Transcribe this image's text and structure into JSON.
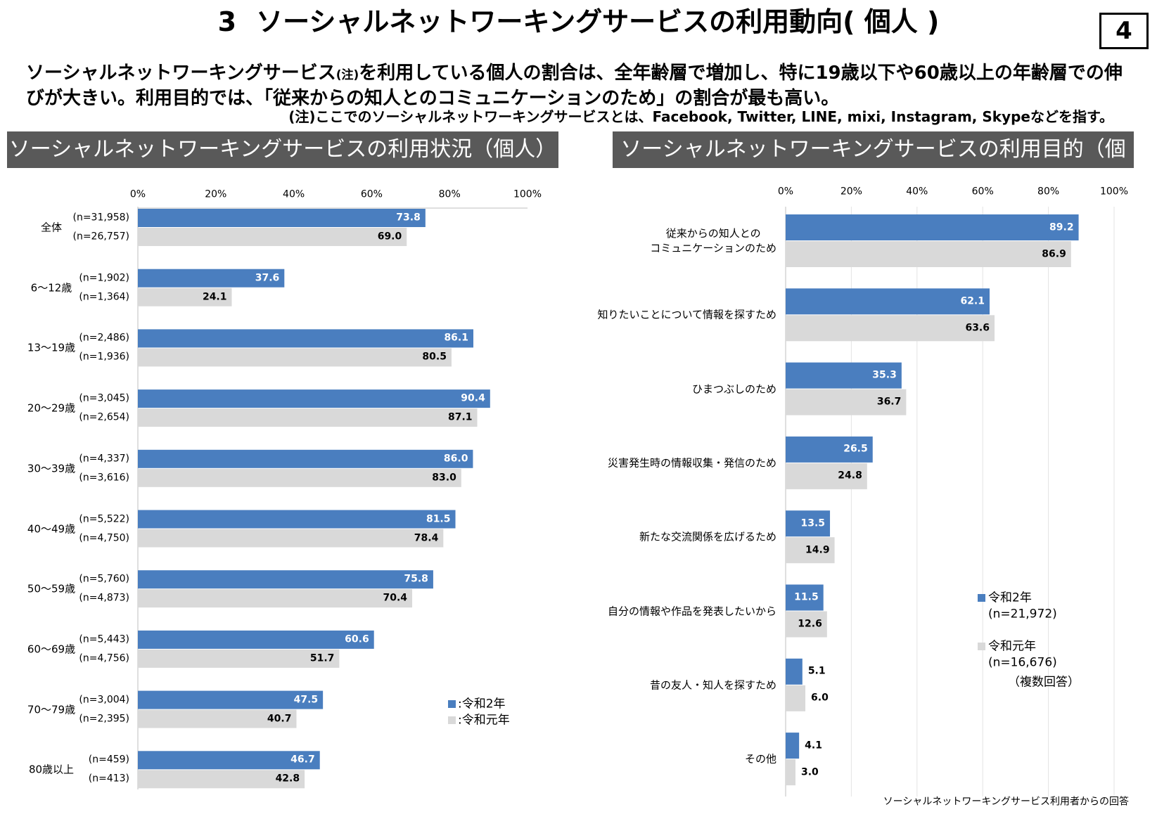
{
  "header": {
    "number": "3",
    "title": "ソーシャルネットワーキングサービスの利用動向( 個人 )",
    "page": "4",
    "summary": [
      "ソーシャルネットワーキングサービス",
      "(注)",
      "を利用している個人の割合は、全年齢層で増加し、特に19歳以下や60歳以上の年齢層での伸びが大きい。利用目的では、「従来からの知人とのコミュニケーションのため」の割合が最も高い。"
    ],
    "note": "(注)ここでのソーシャルネットワーキングサービスとは、Facebook, Twitter, LINE, mixi, Instagram, Skypeなどを指す。"
  },
  "chart_data": [
    {
      "type": "bar",
      "orientation": "horizontal",
      "title": "ソーシャルネットワーキングサービスの利用状況（個人）",
      "categories": [
        "全体",
        "6～12歳",
        "13～19歳",
        "20～29歳",
        "30～39歳",
        "40～49歳",
        "50～59歳",
        "60～69歳",
        "70～79歳",
        "80歳以上"
      ],
      "series": [
        {
          "name": ":令和2年",
          "color": "#4a7ebf",
          "values": [
            73.8,
            37.6,
            86.1,
            90.4,
            86.0,
            81.5,
            75.8,
            60.6,
            47.5,
            46.7
          ],
          "value_labels": [
            "73.8",
            "37.6",
            "86.1",
            "90.4",
            "86.0",
            "81.5",
            "75.8",
            "60.6",
            "47.5",
            "46.7"
          ],
          "n_labels": [
            "(n=31,958)",
            "(n=1,902)",
            "(n=2,486)",
            "(n=3,045)",
            "(n=4,337)",
            "(n=5,522)",
            "(n=5,760)",
            "(n=5,443)",
            "(n=3,004)",
            "(n=459)"
          ]
        },
        {
          "name": ":令和元年",
          "color": "#d9d9d9",
          "values": [
            69.0,
            24.1,
            80.5,
            87.1,
            83.0,
            78.4,
            70.4,
            51.7,
            40.7,
            42.8
          ],
          "value_labels": [
            "69.0",
            "24.1",
            "80.5",
            "87.1",
            "83.0",
            "78.4",
            "70.4",
            "51.7",
            "40.7",
            "42.8"
          ],
          "n_labels": [
            "(n=26,757)",
            "(n=1,364)",
            "(n=1,936)",
            "(n=2,654)",
            "(n=3,616)",
            "(n=4,750)",
            "(n=4,873)",
            "(n=4,756)",
            "(n=2,395)",
            "(n=413)"
          ]
        }
      ],
      "xlim": [
        0,
        100
      ],
      "xticks": [
        {
          "value": 0,
          "label": "0%"
        },
        {
          "value": 20,
          "label": "20%"
        },
        {
          "value": 40,
          "label": "40%"
        },
        {
          "value": 60,
          "label": "60%"
        },
        {
          "value": 80,
          "label": "80%"
        },
        {
          "value": 100,
          "label": "100%"
        }
      ],
      "grid": false,
      "legend": "lower right"
    },
    {
      "type": "bar",
      "orientation": "horizontal",
      "title": "ソーシャルネットワーキングサービスの利用目的（個人）",
      "categories": [
        "従来からの知人との\nコミュニケーションのため",
        "知りたいことについて情報を探すため",
        "ひまつぶしのため",
        "災害発生時の情報収集・発信のため",
        "新たな交流関係を広げるため",
        "自分の情報や作品を発表したいから",
        "昔の友人・知人を探すため",
        "その他"
      ],
      "series": [
        {
          "name": "令和2年",
          "n_label": "(n=21,972)",
          "color": "#4a7ebf",
          "values": [
            89.2,
            62.1,
            35.3,
            26.5,
            13.5,
            11.5,
            5.1,
            4.1
          ]
        },
        {
          "name": "令和元年",
          "n_label": "(n=16,676)",
          "color": "#d9d9d9",
          "values": [
            86.9,
            63.6,
            36.7,
            24.8,
            14.9,
            12.6,
            6.0,
            3.0
          ],
          "value_labels": [
            "86.9",
            "63.6",
            "36.7",
            "24.8",
            "14.9",
            "12.6",
            "6.0",
            "3.0"
          ]
        }
      ],
      "xlim": [
        0,
        100
      ],
      "xticks": [
        {
          "value": 0,
          "label": "0%"
        },
        {
          "value": 20,
          "label": "20%"
        },
        {
          "value": 40,
          "label": "40%"
        },
        {
          "value": 60,
          "label": "60%"
        },
        {
          "value": 80,
          "label": "80%"
        },
        {
          "value": 100,
          "label": "100%"
        }
      ],
      "grid": true,
      "legend": "right",
      "legend_note": "（複数回答）",
      "footnote": "ソーシャルネットワーキングサービス利用者からの回答"
    }
  ]
}
